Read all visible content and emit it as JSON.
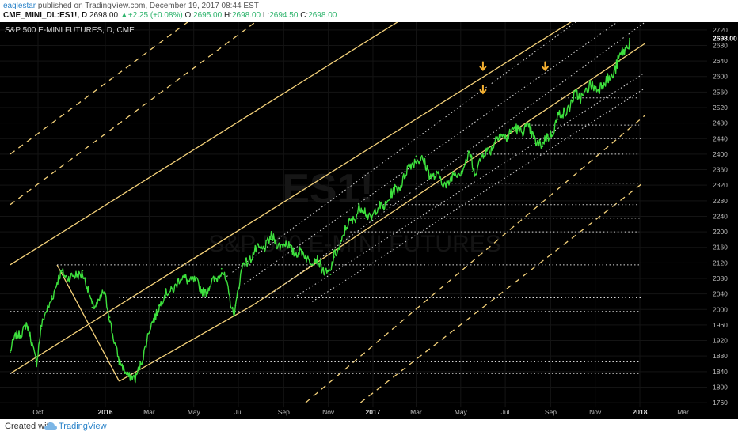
{
  "header": {
    "user": "eaglestar",
    "published_text": " published on TradingView.com, December 19, 2017 08:44 EST",
    "symbol": "CME_MINI_DL:ES1!, D",
    "last": "2698.00",
    "change": "+2.25 (+0.08%)",
    "o_label": "O:",
    "o_value": "2695.00",
    "h_label": "H:",
    "h_value": "2698.00",
    "l_label": "L:",
    "l_value": "2694.50",
    "c_label": "C:",
    "c_value": "2698.00"
  },
  "footer": {
    "created_with": "Created with",
    "brand": "TradingView"
  },
  "chart_data": {
    "type": "line",
    "title": "S&P 500 E-MINI FUTURES, D, CME",
    "watermark_symbol": "ES1!",
    "watermark_name": "S&P 500 E-MINI FUTURES",
    "x_tick_labels": [
      "Oct",
      "2016",
      "Mar",
      "May",
      "Jul",
      "Sep",
      "Nov",
      "2017",
      "Mar",
      "May",
      "Jul",
      "Sep",
      "Nov",
      "2018",
      "Mar"
    ],
    "y_ticks": [
      1760,
      1800,
      1840,
      1880,
      1920,
      1960,
      2000,
      2040,
      2080,
      2120,
      2160,
      2200,
      2240,
      2280,
      2320,
      2360,
      2400,
      2440,
      2480,
      2520,
      2560,
      2600,
      2640,
      2680,
      2720
    ],
    "ylim": [
      1750,
      2740
    ],
    "price_label": "2698.00",
    "grid": true,
    "colors": {
      "background": "#000000",
      "price": "#3de03d",
      "channel": "#f5d27a",
      "dotted": "#dcdcdc",
      "arrows": "#f5b030"
    },
    "series": [
      {
        "name": "ES1! daily",
        "x": [
          "2015-08-24",
          "2015-09-01",
          "2015-09-15",
          "2015-09-29",
          "2015-10-05",
          "2015-10-20",
          "2015-11-03",
          "2015-11-20",
          "2015-12-01",
          "2015-12-14",
          "2015-12-30",
          "2016-01-07",
          "2016-01-20",
          "2016-02-11",
          "2016-03-01",
          "2016-03-14",
          "2016-04-01",
          "2016-04-20",
          "2016-05-19",
          "2016-06-08",
          "2016-06-24",
          "2016-06-27",
          "2016-07-08",
          "2016-08-15",
          "2016-09-09",
          "2016-09-22",
          "2016-10-14",
          "2016-11-04",
          "2016-11-09",
          "2016-11-25",
          "2016-12-13",
          "2016-12-30",
          "2017-01-26",
          "2017-02-14",
          "2017-03-01",
          "2017-03-27",
          "2017-04-13",
          "2017-05-16",
          "2017-05-17",
          "2017-06-19",
          "2017-07-27",
          "2017-08-11",
          "2017-08-21",
          "2017-09-11",
          "2017-10-05",
          "2017-10-31",
          "2017-11-15",
          "2017-12-04",
          "2017-12-18"
        ],
        "values": [
          1890,
          1930,
          1960,
          1870,
          1950,
          2035,
          2095,
          2080,
          2100,
          2005,
          2040,
          1980,
          1860,
          1815,
          1940,
          2010,
          2055,
          2085,
          2045,
          2105,
          1995,
          2010,
          2120,
          2180,
          2160,
          2145,
          2125,
          2090,
          2135,
          2205,
          2260,
          2240,
          2290,
          2345,
          2395,
          2340,
          2325,
          2395,
          2355,
          2440,
          2470,
          2440,
          2420,
          2490,
          2545,
          2575,
          2580,
          2640,
          2698
        ]
      }
    ],
    "channel_lines": [
      {
        "style": "solid",
        "from": [
          "2015-08-24",
          1835
        ],
        "to": [
          "2018-01-08",
          2860
        ]
      },
      {
        "style": "solid",
        "from": [
          "2015-08-24",
          2115
        ],
        "to": [
          "2018-01-08",
          3140
        ]
      },
      {
        "style": "dashed",
        "from": [
          "2015-08-24",
          2400
        ],
        "to": [
          "2016-11-01",
          3010
        ]
      },
      {
        "style": "dashed",
        "from": [
          "2015-08-24",
          2270
        ],
        "to": [
          "2016-11-01",
          2880
        ]
      },
      {
        "style": "solid",
        "from": [
          "2015-10-27",
          2115
        ],
        "to": [
          "2016-01-20",
          1815
        ]
      },
      {
        "style": "solid",
        "from": [
          "2016-01-20",
          1815
        ],
        "to": [
          "2016-07-20",
          2010
        ]
      },
      {
        "style": "solid",
        "from": [
          "2016-07-20",
          2010
        ],
        "to": [
          "2018-01-08",
          2685
        ]
      },
      {
        "style": "dashed",
        "from": [
          "2016-10-01",
          1760
        ],
        "to": [
          "2018-01-08",
          2500
        ]
      },
      {
        "style": "dashed",
        "from": [
          "2016-12-15",
          1760
        ],
        "to": [
          "2018-01-08",
          2330
        ]
      },
      {
        "style": "dotted",
        "from": [
          "2016-06-15",
          2085
        ],
        "to": [
          "2018-01-08",
          2870
        ]
      },
      {
        "style": "dotted",
        "from": [
          "2016-07-01",
          2055
        ],
        "to": [
          "2018-01-08",
          2790
        ]
      },
      {
        "style": "dotted",
        "from": [
          "2016-08-15",
          2040
        ],
        "to": [
          "2018-01-08",
          2740
        ]
      },
      {
        "style": "dotted",
        "from": [
          "2016-09-15",
          2030
        ],
        "to": [
          "2018-01-08",
          2610
        ]
      },
      {
        "style": "dotted",
        "from": [
          "2016-10-10",
          2020
        ],
        "to": [
          "2018-01-08",
          2570
        ]
      }
    ],
    "horizontal_dotted_levels": [
      {
        "y": 2115,
        "from": "2015-10-27",
        "to": "2017-12-31"
      },
      {
        "y": 2030,
        "from": "2016-01-20",
        "to": "2018-01-03"
      },
      {
        "y": 1995,
        "from": "2015-08-24",
        "to": "2017-12-31"
      },
      {
        "y": 1865,
        "from": "2015-08-24",
        "to": "2017-12-31"
      },
      {
        "y": 1835,
        "from": "2015-08-24",
        "to": "2017-12-31"
      },
      {
        "y": 2200,
        "from": "2016-12-01",
        "to": "2017-12-31"
      },
      {
        "y": 2235,
        "from": "2016-12-10",
        "to": "2018-01-03"
      },
      {
        "y": 2270,
        "from": "2017-01-05",
        "to": "2017-12-31"
      },
      {
        "y": 2325,
        "from": "2017-03-01",
        "to": "2017-12-31"
      },
      {
        "y": 2400,
        "from": "2017-05-17",
        "to": "2017-12-31"
      },
      {
        "y": 2440,
        "from": "2017-06-15",
        "to": "2018-01-03"
      },
      {
        "y": 2475,
        "from": "2017-08-01",
        "to": "2017-12-31"
      },
      {
        "y": 2545,
        "from": "2017-09-15",
        "to": "2017-12-31"
      }
    ],
    "arrows": [
      {
        "x": "2017-06-01",
        "y": 2625
      },
      {
        "x": "2017-06-01",
        "y": 2565
      },
      {
        "x": "2017-08-25",
        "y": 2625
      }
    ]
  }
}
